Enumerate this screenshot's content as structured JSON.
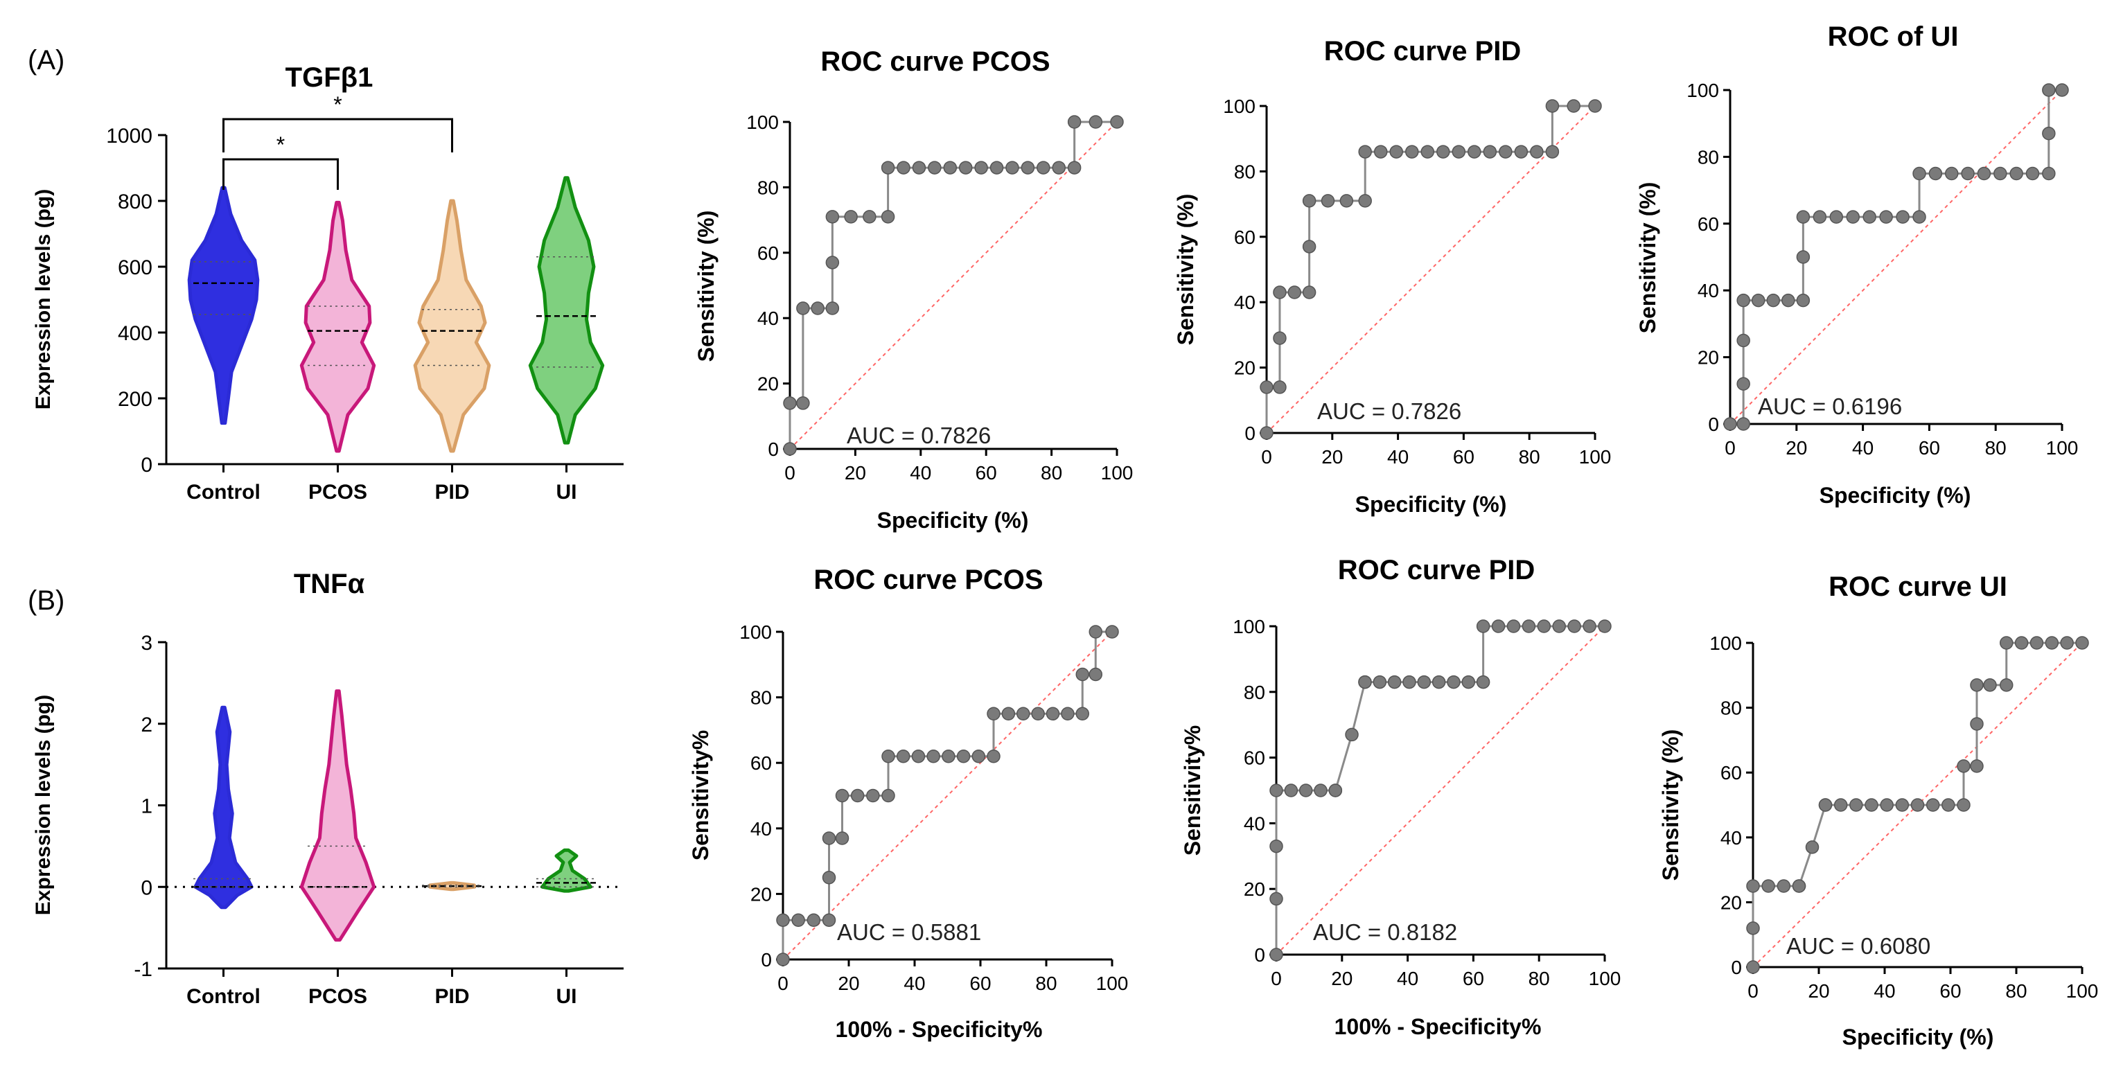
{
  "panel_labels": {
    "a": "(A)",
    "b": "(B)"
  },
  "colors": {
    "control": "#2b2bd6",
    "pcos": "#c8187a",
    "pid": "#d9a066",
    "ui": "#129012",
    "control_fill": "#2f2fe0",
    "pcos_fill": "#f3b4d8",
    "pid_fill": "#f7d8b5",
    "ui_fill": "#7fd07f",
    "roc_line": "#8a8a8a",
    "roc_marker": "#7a7a7a",
    "diagonal": "#ff6666",
    "axis": "#000000"
  },
  "chart_data": [
    {
      "id": "violinA",
      "type": "violin",
      "title": "TGFβ1",
      "ylabel": "Expression levels (pg)",
      "categories": [
        "Control",
        "PCOS",
        "PID",
        "UI"
      ],
      "ylim": [
        0,
        1000
      ],
      "yticks": [
        0,
        200,
        400,
        600,
        800,
        1000
      ],
      "range": [
        [
          125,
          840
        ],
        [
          40,
          795
        ],
        [
          40,
          800
        ],
        [
          65,
          870
        ]
      ],
      "median": [
        550,
        405,
        405,
        450
      ],
      "q1": [
        455,
        300,
        300,
        295
      ],
      "q3": [
        615,
        480,
        470,
        630
      ],
      "profiles": [
        [
          [
            125,
            0.04
          ],
          [
            200,
            0.12
          ],
          [
            280,
            0.2
          ],
          [
            360,
            0.45
          ],
          [
            440,
            0.7
          ],
          [
            500,
            0.82
          ],
          [
            560,
            0.85
          ],
          [
            620,
            0.78
          ],
          [
            680,
            0.45
          ],
          [
            760,
            0.18
          ],
          [
            840,
            0.03
          ]
        ],
        [
          [
            40,
            0.03
          ],
          [
            150,
            0.25
          ],
          [
            230,
            0.75
          ],
          [
            300,
            0.9
          ],
          [
            370,
            0.6
          ],
          [
            430,
            0.8
          ],
          [
            480,
            0.78
          ],
          [
            560,
            0.35
          ],
          [
            650,
            0.2
          ],
          [
            740,
            0.12
          ],
          [
            795,
            0.03
          ]
        ],
        [
          [
            40,
            0.03
          ],
          [
            150,
            0.28
          ],
          [
            230,
            0.8
          ],
          [
            300,
            0.92
          ],
          [
            370,
            0.6
          ],
          [
            430,
            0.82
          ],
          [
            480,
            0.72
          ],
          [
            560,
            0.35
          ],
          [
            650,
            0.22
          ],
          [
            740,
            0.12
          ],
          [
            800,
            0.03
          ]
        ],
        [
          [
            65,
            0.04
          ],
          [
            150,
            0.22
          ],
          [
            230,
            0.72
          ],
          [
            300,
            0.9
          ],
          [
            370,
            0.6
          ],
          [
            440,
            0.5
          ],
          [
            520,
            0.55
          ],
          [
            600,
            0.68
          ],
          [
            680,
            0.55
          ],
          [
            780,
            0.22
          ],
          [
            870,
            0.03
          ]
        ]
      ],
      "significance": [
        {
          "from": 0,
          "to": 1,
          "label": "*"
        },
        {
          "from": 0,
          "to": 2,
          "label": "*"
        }
      ]
    },
    {
      "id": "violinB",
      "type": "violin",
      "title": "TNFα",
      "ylabel": "Expression levels (pg)",
      "categories": [
        "Control",
        "PCOS",
        "PID",
        "UI"
      ],
      "ylim": [
        -1,
        3
      ],
      "yticks": [
        -1,
        0,
        1,
        2,
        3
      ],
      "reference_line": 0,
      "range": [
        [
          -0.25,
          2.2
        ],
        [
          -0.65,
          2.4
        ],
        [
          -0.03,
          0.05
        ],
        [
          -0.05,
          0.45
        ]
      ],
      "median": [
        0,
        0,
        0.01,
        0.05
      ],
      "q1": [
        0,
        0,
        0,
        0
      ],
      "q3": [
        0.1,
        0.5,
        0.02,
        0.1
      ],
      "profiles": [
        [
          [
            -0.25,
            0.05
          ],
          [
            -0.1,
            0.35
          ],
          [
            0,
            0.7
          ],
          [
            0.1,
            0.6
          ],
          [
            0.3,
            0.3
          ],
          [
            0.6,
            0.15
          ],
          [
            0.9,
            0.22
          ],
          [
            1.2,
            0.12
          ],
          [
            1.5,
            0.08
          ],
          [
            1.9,
            0.16
          ],
          [
            2.2,
            0.03
          ]
        ],
        [
          [
            -0.65,
            0.05
          ],
          [
            -0.3,
            0.5
          ],
          [
            0,
            0.9
          ],
          [
            0.3,
            0.7
          ],
          [
            0.6,
            0.45
          ],
          [
            0.9,
            0.4
          ],
          [
            1.2,
            0.32
          ],
          [
            1.5,
            0.22
          ],
          [
            1.8,
            0.16
          ],
          [
            2.1,
            0.1
          ],
          [
            2.4,
            0.03
          ]
        ],
        [
          [
            -0.03,
            0.03
          ],
          [
            0,
            0.55
          ],
          [
            0.02,
            0.55
          ],
          [
            0.05,
            0.03
          ]
        ],
        [
          [
            -0.05,
            0.05
          ],
          [
            0,
            0.6
          ],
          [
            0.1,
            0.45
          ],
          [
            0.2,
            0.15
          ],
          [
            0.3,
            0.08
          ],
          [
            0.38,
            0.25
          ],
          [
            0.45,
            0.05
          ]
        ]
      ]
    },
    {
      "id": "rocA1",
      "type": "line",
      "title": "ROC curve PCOS",
      "xlabel": "Specificity (%)",
      "ylabel": "Sensitivity (%)",
      "xlim": [
        0,
        100
      ],
      "ylim": [
        0,
        100
      ],
      "auc": "AUC = 0.7826",
      "x": [
        0,
        0,
        4,
        4,
        13,
        13,
        13,
        30,
        30,
        87,
        87,
        100
      ],
      "y": [
        0,
        14,
        14,
        43,
        43,
        57,
        71,
        71,
        86,
        86,
        100,
        100
      ]
    },
    {
      "id": "rocA2",
      "type": "line",
      "title": "ROC curve PID",
      "xlabel": "Specificity (%)",
      "ylabel": "Sensitivity (%)",
      "xlim": [
        0,
        100
      ],
      "ylim": [
        0,
        100
      ],
      "auc": "AUC = 0.7826",
      "x": [
        0,
        0,
        4,
        4,
        4,
        13,
        13,
        13,
        30,
        30,
        87,
        87,
        100
      ],
      "y": [
        0,
        14,
        14,
        29,
        43,
        43,
        57,
        71,
        71,
        86,
        86,
        100,
        100
      ]
    },
    {
      "id": "rocA3",
      "type": "line",
      "title": "ROC of UI",
      "xlabel": "Specificity (%)",
      "ylabel": "Sensitivity (%)",
      "xlim": [
        0,
        100
      ],
      "ylim": [
        0,
        100
      ],
      "auc": "AUC = 0.6196",
      "x": [
        0,
        4,
        4,
        4,
        4,
        22,
        22,
        22,
        57,
        57,
        96,
        96,
        96,
        100
      ],
      "y": [
        0,
        0,
        12,
        25,
        37,
        37,
        50,
        62,
        62,
        75,
        75,
        87,
        100,
        100
      ]
    },
    {
      "id": "rocB1",
      "type": "line",
      "title": "ROC curve PCOS",
      "xlabel": "100% - Specificity%",
      "ylabel": "Sensitivity%",
      "xlim": [
        0,
        100
      ],
      "ylim": [
        0,
        100
      ],
      "auc": "AUC = 0.5881",
      "x": [
        0,
        0,
        14,
        14,
        14,
        18,
        18,
        32,
        32,
        64,
        64,
        91,
        91,
        95,
        95,
        100
      ],
      "y": [
        0,
        12,
        12,
        25,
        37,
        37,
        50,
        50,
        62,
        62,
        75,
        75,
        87,
        87,
        100,
        100
      ]
    },
    {
      "id": "rocB2",
      "type": "line",
      "title": "ROC curve PID",
      "xlabel": "100% - Specificity%",
      "ylabel": "Sensitivity%",
      "xlim": [
        0,
        100
      ],
      "ylim": [
        0,
        100
      ],
      "auc": "AUC = 0.8182",
      "x": [
        0,
        0,
        0,
        0,
        18,
        18,
        23,
        27,
        27,
        63,
        63,
        100
      ],
      "y": [
        0,
        17,
        33,
        50,
        50,
        50,
        67,
        83,
        83,
        83,
        100,
        100
      ]
    },
    {
      "id": "rocB3",
      "type": "line",
      "title": "ROC curve UI",
      "xlabel": "Specificity (%)",
      "ylabel": "Sensitivity (%)",
      "xlim": [
        0,
        100
      ],
      "ylim": [
        0,
        100
      ],
      "auc": "AUC = 0.6080",
      "x": [
        0,
        0,
        0,
        14,
        14,
        18,
        22,
        22,
        64,
        64,
        68,
        68,
        68,
        72,
        77,
        77,
        100
      ],
      "y": [
        0,
        12,
        25,
        25,
        25,
        37,
        50,
        50,
        50,
        62,
        62,
        75,
        87,
        87,
        87,
        100,
        100
      ]
    }
  ]
}
